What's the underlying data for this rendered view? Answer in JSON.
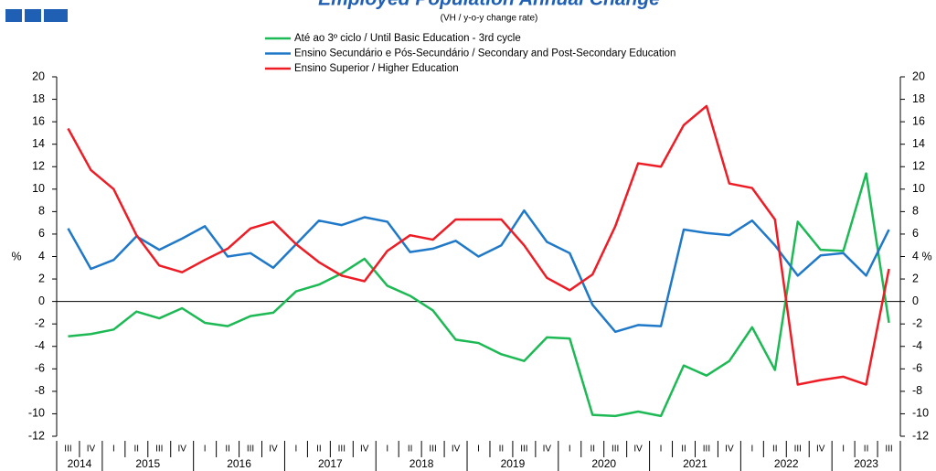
{
  "chart_data": {
    "type": "line",
    "title": "Employed Population Annual Change",
    "subtitle": "(VH / y-o-y change rate)",
    "y_label": "%",
    "y2_label": "%",
    "categories": [
      "III",
      "IV",
      "I",
      "II",
      "III",
      "IV",
      "I",
      "II",
      "III",
      "IV",
      "I",
      "II",
      "III",
      "IV",
      "I",
      "II",
      "III",
      "IV",
      "I",
      "II",
      "III",
      "IV",
      "I",
      "II",
      "III",
      "IV",
      "I",
      "II",
      "III",
      "IV",
      "I",
      "II",
      "III",
      "IV",
      "I",
      "II",
      "III"
    ],
    "years": [
      "2014",
      "2015",
      "2016",
      "2017",
      "2018",
      "2019",
      "2020",
      "2021",
      "2022",
      "2023"
    ],
    "ylim": [
      -12,
      20
    ],
    "yticks": [
      -12,
      -10,
      -8,
      -6,
      -4,
      -2,
      0,
      2,
      4,
      6,
      8,
      10,
      12,
      14,
      16,
      18,
      20
    ],
    "series": [
      {
        "name": "Até ao 3º ciclo / Until Basic Education - 3rd cycle",
        "color": "#1db954",
        "values": [
          -3.1,
          -2.9,
          -2.5,
          -0.9,
          -1.5,
          -0.6,
          -1.9,
          -2.2,
          -1.3,
          -1.0,
          0.9,
          1.5,
          2.5,
          3.8,
          1.4,
          0.5,
          -0.8,
          -3.4,
          -3.7,
          -4.7,
          -5.3,
          -3.2,
          -3.3,
          -10.1,
          -10.2,
          -9.8,
          -10.2,
          -5.7,
          -6.6,
          -5.3,
          -2.3,
          -6.1,
          7.1,
          4.6,
          4.5,
          11.4,
          -1.9
        ]
      },
      {
        "name": "Ensino Secundário e Pós-Secundário / Secondary and Post-Secondary Education",
        "color": "#1f78c8",
        "values": [
          6.5,
          2.9,
          3.7,
          5.8,
          4.6,
          5.6,
          6.7,
          4.0,
          4.3,
          3.0,
          5.1,
          7.2,
          6.8,
          7.5,
          7.1,
          4.4,
          4.7,
          5.4,
          4.0,
          5.0,
          8.1,
          5.3,
          4.3,
          -0.3,
          -2.7,
          -2.1,
          -2.2,
          6.4,
          6.1,
          5.9,
          7.2,
          5.0,
          2.3,
          4.1,
          4.3,
          2.3,
          6.4
        ]
      },
      {
        "name": "Ensino Superior / Higher Education",
        "color": "#ee1c25",
        "values": [
          15.4,
          11.7,
          10.0,
          5.9,
          3.2,
          2.6,
          3.7,
          4.7,
          6.5,
          7.1,
          5.1,
          3.5,
          2.3,
          1.8,
          4.5,
          5.9,
          5.5,
          7.3,
          7.3,
          7.3,
          5.0,
          2.1,
          1.0,
          2.4,
          6.7,
          12.3,
          12.0,
          15.7,
          17.4,
          10.5,
          10.1,
          7.3,
          -7.4,
          -7.0,
          -6.7,
          -7.4,
          2.9
        ]
      }
    ]
  }
}
